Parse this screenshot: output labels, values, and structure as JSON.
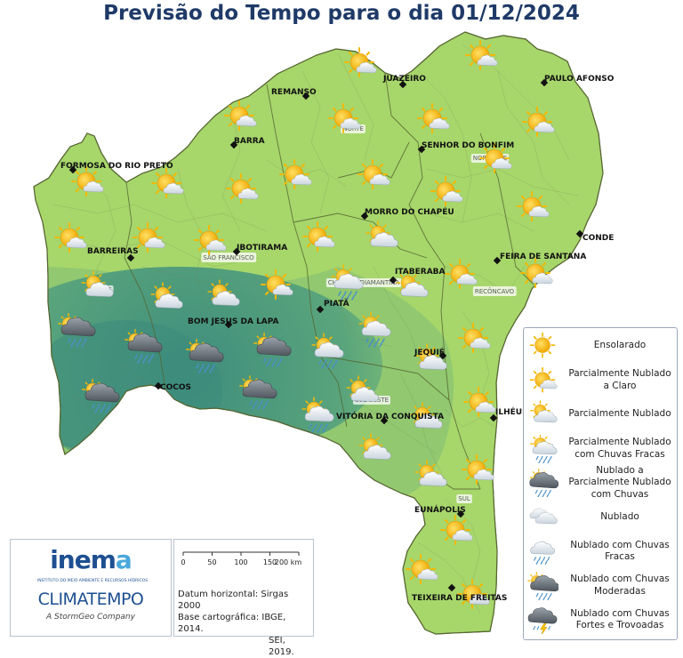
{
  "title": "Previsão do Tempo para o dia 01/12/2024",
  "cities": [
    {
      "name": "REMANSO",
      "marker": [
        344,
        108
      ],
      "label": [
        305,
        106
      ]
    },
    {
      "name": "JUAZEIRO",
      "marker": [
        453,
        95
      ],
      "label": [
        431,
        91
      ]
    },
    {
      "name": "PAULO AFONSO",
      "marker": [
        612,
        93
      ],
      "label": [
        612,
        91
      ]
    },
    {
      "name": "BARRA",
      "marker": [
        263,
        163
      ],
      "label": [
        263,
        161
      ]
    },
    {
      "name": "SENHOR DO BONFIM",
      "marker": [
        474,
        168
      ],
      "label": [
        474,
        166
      ]
    },
    {
      "name": "FORMOSA DO RIO PRETO",
      "marker": [
        82,
        191
      ],
      "label": [
        68,
        189
      ]
    },
    {
      "name": "MORRO DO CHAPÉU",
      "marker": [
        410,
        243
      ],
      "label": [
        410,
        241
      ]
    },
    {
      "name": "CONDE",
      "marker": [
        652,
        263
      ],
      "label": [
        655,
        270
      ]
    },
    {
      "name": "IBOTIRAMA",
      "marker": [
        266,
        283
      ],
      "label": [
        266,
        281
      ]
    },
    {
      "name": "BARREIRAS",
      "marker": [
        147,
        290
      ],
      "label": [
        98,
        285
      ]
    },
    {
      "name": "FEIRA DE SANTANA",
      "marker": [
        559,
        293
      ],
      "label": [
        562,
        291
      ]
    },
    {
      "name": "ITABERABA",
      "marker": [
        442,
        315
      ],
      "label": [
        444,
        308
      ]
    },
    {
      "name": "PIATÃ",
      "marker": [
        360,
        348
      ],
      "label": [
        364,
        344
      ]
    },
    {
      "name": "BOM JESUS DA LAPA",
      "marker": [
        257,
        365
      ],
      "label": [
        211,
        364
      ]
    },
    {
      "name": "JEQUIÉ",
      "marker": [
        498,
        400
      ],
      "label": [
        466,
        399
      ]
    },
    {
      "name": "COCOS",
      "marker": [
        178,
        434
      ],
      "label": [
        180,
        438
      ]
    },
    {
      "name": "ILHÉUS",
      "marker": [
        555,
        470
      ],
      "label": [
        557,
        466
      ]
    },
    {
      "name": "VITÓRIA DA CONQUISTA",
      "marker": [
        432,
        473
      ],
      "label": [
        378,
        471
      ]
    },
    {
      "name": "EUNÁPOLIS",
      "marker": [
        518,
        578
      ],
      "label": [
        466,
        576
      ]
    },
    {
      "name": "TEIXEIRA DE FREITAS",
      "marker": [
        508,
        661
      ],
      "label": [
        463,
        675
      ]
    }
  ],
  "regions": [
    {
      "name": "NORTE",
      "pos": [
        397,
        147
      ]
    },
    {
      "name": "NORDESTE",
      "pos": [
        551,
        180
      ]
    },
    {
      "name": "SÃO FRANCISCO",
      "pos": [
        257,
        292
      ]
    },
    {
      "name": "OESTE",
      "pos": [
        114,
        328
      ]
    },
    {
      "name": "CHAPADA DIAMANTINA",
      "pos": [
        409,
        320
      ]
    },
    {
      "name": "RECÔNCAVO",
      "pos": [
        556,
        330
      ]
    },
    {
      "name": "SUDOESTE",
      "pos": [
        418,
        452
      ]
    },
    {
      "name": "SUL",
      "pos": [
        522,
        563
      ]
    }
  ],
  "forecast_icons": [
    {
      "cond": "partly-cloudy-clear",
      "pos": [
        404,
        70
      ]
    },
    {
      "cond": "partly-cloudy-clear",
      "pos": [
        540,
        62
      ]
    },
    {
      "cond": "partly-cloudy-clear",
      "pos": [
        269,
        130
      ]
    },
    {
      "cond": "partly-cloudy-clear",
      "pos": [
        386,
        133
      ]
    },
    {
      "cond": "partly-cloudy-clear",
      "pos": [
        486,
        133
      ]
    },
    {
      "cond": "partly-cloudy-clear",
      "pos": [
        604,
        137
      ]
    },
    {
      "cond": "partly-cloudy-clear",
      "pos": [
        556,
        178
      ]
    },
    {
      "cond": "partly-cloudy-clear",
      "pos": [
        97,
        204
      ]
    },
    {
      "cond": "partly-cloudy-clear",
      "pos": [
        187,
        206
      ]
    },
    {
      "cond": "partly-cloudy-clear",
      "pos": [
        271,
        212
      ]
    },
    {
      "cond": "partly-cloudy-clear",
      "pos": [
        331,
        196
      ]
    },
    {
      "cond": "partly-cloudy-clear",
      "pos": [
        419,
        196
      ]
    },
    {
      "cond": "partly-cloudy-clear",
      "pos": [
        501,
        215
      ]
    },
    {
      "cond": "partly-cloudy-clear",
      "pos": [
        598,
        232
      ]
    },
    {
      "cond": "partly-cloudy-clear",
      "pos": [
        78,
        267
      ]
    },
    {
      "cond": "partly-cloudy-clear",
      "pos": [
        166,
        267
      ]
    },
    {
      "cond": "partly-cloudy-clear",
      "pos": [
        235,
        270
      ]
    },
    {
      "cond": "partly-cloudy-clear",
      "pos": [
        357,
        266
      ]
    },
    {
      "cond": "partly-cloudy",
      "pos": [
        428,
        266
      ]
    },
    {
      "cond": "partly-cloudy-clear",
      "pos": [
        517,
        308
      ]
    },
    {
      "cond": "partly-cloudy-clear",
      "pos": [
        602,
        307
      ]
    },
    {
      "cond": "partly-cloudy-light-rain",
      "pos": [
        389,
        317
      ]
    },
    {
      "cond": "partly-cloudy",
      "pos": [
        108,
        322
      ]
    },
    {
      "cond": "partly-cloudy",
      "pos": [
        186,
        335
      ]
    },
    {
      "cond": "partly-cloudy",
      "pos": [
        250,
        332
      ]
    },
    {
      "cond": "partly-cloudy-clear",
      "pos": [
        310,
        320
      ]
    },
    {
      "cond": "partly-cloudy",
      "pos": [
        462,
        322
      ]
    },
    {
      "cond": "cloudy-moderate-rain",
      "pos": [
        85,
        370
      ]
    },
    {
      "cond": "cloudy-moderate-rain",
      "pos": [
        160,
        388
      ]
    },
    {
      "cond": "cloudy-moderate-rain",
      "pos": [
        229,
        399
      ]
    },
    {
      "cond": "cloudy-moderate-rain",
      "pos": [
        305,
        392
      ]
    },
    {
      "cond": "partly-cloudy-light-rain",
      "pos": [
        367,
        394
      ]
    },
    {
      "cond": "partly-cloudy-light-rain",
      "pos": [
        420,
        370
      ]
    },
    {
      "cond": "partly-cloudy-clear",
      "pos": [
        532,
        380
      ]
    },
    {
      "cond": "partly-cloudy",
      "pos": [
        483,
        404
      ]
    },
    {
      "cond": "cloudy-moderate-rain",
      "pos": [
        112,
        444
      ]
    },
    {
      "cond": "cloudy-moderate-rain",
      "pos": [
        289,
        440
      ]
    },
    {
      "cond": "partly-cloudy",
      "pos": [
        406,
        440
      ]
    },
    {
      "cond": "partly-cloudy-light-rain",
      "pos": [
        356,
        466
      ]
    },
    {
      "cond": "partly-cloudy",
      "pos": [
        478,
        470
      ]
    },
    {
      "cond": "partly-cloudy-clear",
      "pos": [
        538,
        452
      ]
    },
    {
      "cond": "partly-cloudy",
      "pos": [
        420,
        505
      ]
    },
    {
      "cond": "partly-cloudy",
      "pos": [
        483,
        535
      ]
    },
    {
      "cond": "partly-cloudy-clear",
      "pos": [
        536,
        528
      ]
    },
    {
      "cond": "partly-cloudy-clear",
      "pos": [
        512,
        596
      ]
    },
    {
      "cond": "partly-cloudy-clear",
      "pos": [
        473,
        640
      ]
    },
    {
      "cond": "partly-cloudy-clear",
      "pos": [
        531,
        668
      ]
    }
  ],
  "legend": {
    "items": [
      {
        "icon": "sunny",
        "label": "Ensolarado"
      },
      {
        "icon": "partly-cloudy-clear",
        "label": "Parcialmente Nublado a Claro"
      },
      {
        "icon": "partly-cloudy",
        "label": "Parcialmente Nublado"
      },
      {
        "icon": "partly-cloudy-light-rain",
        "label": "Parcialmente Nublado com Chuvas Fracas"
      },
      {
        "icon": "cloudy-partly-rain",
        "label": "Nublado a Parcialmente Nublado com Chuvas"
      },
      {
        "icon": "cloudy",
        "label": "Nublado"
      },
      {
        "icon": "cloudy-light-rain",
        "label": "Nublado com Chuvas Fracas"
      },
      {
        "icon": "cloudy-moderate-rain",
        "label": "Nublado com Chuvas Moderadas"
      },
      {
        "icon": "storm",
        "label": "Nublado com Chuvas Fortes e Trovoadas"
      }
    ]
  },
  "logo": {
    "inema_pre": "inem",
    "inema_post": "a",
    "inema_subtitle": "INSTITUTO DO MEIO AMBIENTE E RECURSOS HÍDRICOS",
    "climatempo": "CLIMATEMPO",
    "stormgeo": "A StormGeo Company"
  },
  "scale": {
    "ticks": [
      "0",
      "50",
      "100",
      "150",
      "200 km"
    ],
    "datum_line1": "Datum horizontal: Sirgas 2000",
    "datum_line2": "Base cartográfica: IBGE, 2014.",
    "datum_line3": "SEI, 2019."
  },
  "colors": {
    "title": "#1f3a68",
    "map_green_light": "#a9d86b",
    "map_green_dark": "#3b8a7c",
    "border_lines": "#6b7a55",
    "sun": "#f4b800",
    "cloud": "#e9eef3",
    "dark_cloud": "#6d747c",
    "rain": "#4a90c8"
  }
}
